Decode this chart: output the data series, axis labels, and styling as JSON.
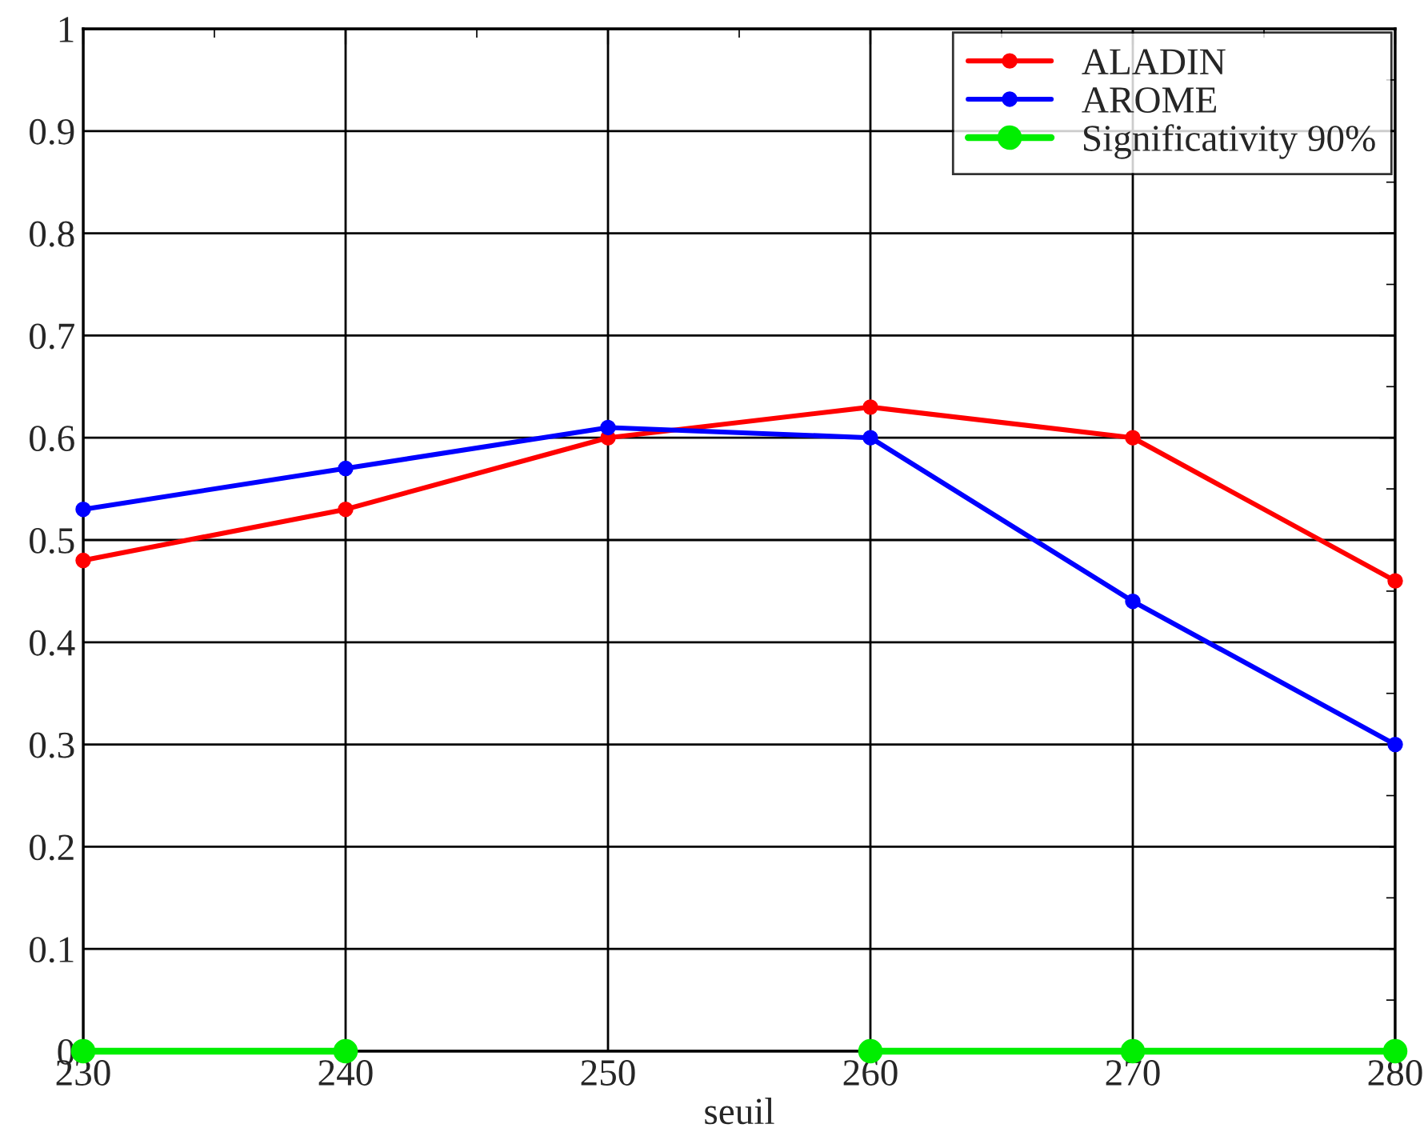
{
  "chart_data": {
    "type": "line",
    "xlabel": "seuil",
    "x": [
      230,
      240,
      250,
      260,
      270,
      280
    ],
    "series": [
      {
        "name": "ALADIN",
        "color": "#ff0000",
        "values": [
          0.48,
          0.53,
          0.6,
          0.63,
          0.6,
          0.46
        ]
      },
      {
        "name": "AROME",
        "color": "#0000ff",
        "values": [
          0.53,
          0.57,
          0.61,
          0.6,
          0.44,
          0.3
        ]
      },
      {
        "name": "Significativity 90%",
        "color": "#00ee00",
        "values": [
          0,
          0,
          null,
          0,
          0,
          0
        ]
      }
    ],
    "xlim": [
      230,
      280
    ],
    "xticks": [
      230,
      {
        "value": 235,
        "label": null
      },
      240,
      {
        "value": 245,
        "label": null
      },
      250,
      {
        "value": 255,
        "label": null
      },
      260,
      {
        "value": 265,
        "label": null
      },
      270,
      {
        "value": 275,
        "label": null
      },
      280
    ],
    "ylim": [
      0,
      1
    ],
    "yticks": [
      0,
      {
        "value": 0.05,
        "label": null
      },
      0.1,
      {
        "value": 0.15,
        "label": null
      },
      0.2,
      {
        "value": 0.25,
        "label": null
      },
      0.3,
      {
        "value": 0.35,
        "label": null
      },
      0.4,
      {
        "value": 0.45,
        "label": null
      },
      0.5,
      {
        "value": 0.55,
        "label": null
      },
      0.6,
      {
        "value": 0.65,
        "label": null
      },
      0.7,
      {
        "value": 0.75,
        "label": null
      },
      0.8,
      {
        "value": 0.85,
        "label": null
      },
      0.9,
      {
        "value": 0.95,
        "label": null
      },
      1
    ],
    "grid": true,
    "legend": "top right",
    "marker": "circle",
    "line_style": "solid"
  }
}
